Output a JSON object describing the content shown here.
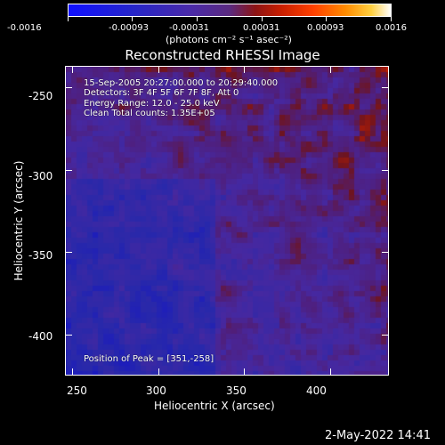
{
  "colorbar": {
    "ticks": [
      "-0.0016",
      "-0.00093",
      "-0.00031",
      "0.00031",
      "0.00093",
      "0.0016"
    ],
    "units_label": "(photons cm⁻² s⁻¹ asec⁻²)"
  },
  "title": "Reconstructed RHESSI Image",
  "annotations": {
    "time_range": "15-Sep-2005 20:27:00.000 to 20:29:40.000",
    "detectors": "Detectors: 3F 4F 5F 6F 7F 8F, Att 0",
    "energy": "Energy Range: 12.0 - 25.0 keV",
    "clean": "Clean     Total counts: 1.35E+05",
    "peak": "Position of Peak = [351,-258]"
  },
  "chart_data": {
    "type": "heatmap",
    "title": "Reconstructed RHESSI Image",
    "xlabel": "Heliocentric X (arcsec)",
    "ylabel": "Heliocentric Y (arcsec)",
    "xlim": [
      246,
      434
    ],
    "ylim": [
      -425,
      -237
    ],
    "xticks": [
      "250",
      "300",
      "350",
      "400"
    ],
    "yticks": [
      "-250",
      "-300",
      "-350",
      "-400"
    ],
    "colorbar_range": [
      -0.0016,
      0.0016
    ],
    "peak": [
      351,
      -258
    ]
  },
  "footer": {
    "date": "2-May-2022 14:41"
  }
}
